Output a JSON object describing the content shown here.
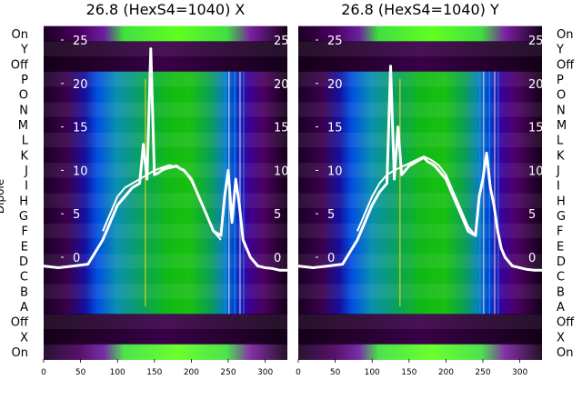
{
  "chart_data": [
    {
      "type": "heatmap",
      "title": "26.8 (HexS4=1040) X",
      "ylabel": "Dipole",
      "xlim": [
        0,
        330
      ],
      "x_ticks": [
        0,
        50,
        100,
        150,
        200,
        250,
        300
      ],
      "row_labels": [
        "On",
        "Y",
        "Off",
        "P",
        "O",
        "N",
        "M",
        "L",
        "K",
        "J",
        "I",
        "H",
        "G",
        "F",
        "E",
        "D",
        "C",
        "B",
        "A",
        "Off",
        "X",
        "On"
      ],
      "overlay_ticks": [
        25,
        20,
        15,
        10,
        5,
        0
      ],
      "series": [
        {
          "x": [
            0,
            20,
            40,
            60,
            80,
            90,
            100,
            110,
            120,
            130,
            135,
            140,
            145,
            150,
            155,
            160,
            165,
            170,
            175,
            180,
            185,
            190,
            200,
            210,
            220,
            230,
            240,
            245,
            250,
            255,
            260,
            265,
            270,
            275,
            280,
            290,
            300,
            310,
            320,
            330
          ],
          "y": [
            -1,
            -1.2,
            -1,
            -0.8,
            2,
            4,
            6,
            7,
            8,
            8.5,
            13,
            9,
            24,
            9.5,
            9.7,
            10,
            10.2,
            10.3,
            10.4,
            10.5,
            10.2,
            10,
            9,
            7,
            5,
            3,
            2.5,
            7,
            10,
            4,
            9,
            6,
            2,
            1,
            0,
            -1,
            -1.2,
            -1.3,
            -1.5,
            -1.5
          ]
        },
        {
          "x": [
            80,
            90,
            100,
            110,
            120,
            130,
            140,
            150,
            160,
            170,
            180,
            190,
            200,
            210,
            220,
            230,
            240
          ],
          "y": [
            3,
            5,
            7,
            8,
            8.5,
            9,
            9.5,
            10,
            10.3,
            10.6,
            10.4,
            10,
            8.8,
            7,
            5,
            3,
            2
          ]
        }
      ]
    },
    {
      "type": "heatmap",
      "title": "26.8 (HexS4=1040) Y",
      "xlim": [
        0,
        330
      ],
      "x_ticks": [
        0,
        50,
        100,
        150,
        200,
        250,
        300
      ],
      "row_labels": [
        "On",
        "Y",
        "Off",
        "P",
        "O",
        "N",
        "M",
        "L",
        "K",
        "J",
        "I",
        "H",
        "G",
        "F",
        "E",
        "D",
        "C",
        "B",
        "A",
        "Off",
        "X",
        "On"
      ],
      "overlay_ticks": [
        25,
        20,
        15,
        10,
        5,
        0
      ],
      "series": [
        {
          "x": [
            0,
            20,
            40,
            60,
            80,
            90,
            100,
            110,
            120,
            125,
            130,
            135,
            140,
            145,
            150,
            160,
            170,
            175,
            180,
            185,
            190,
            200,
            210,
            220,
            230,
            240,
            245,
            250,
            255,
            260,
            265,
            270,
            275,
            280,
            290,
            300,
            310,
            320,
            330
          ],
          "y": [
            -1,
            -1.2,
            -1,
            -0.8,
            2,
            4,
            6,
            7.5,
            8.5,
            22,
            9,
            15,
            9.5,
            10,
            10.5,
            11,
            11.5,
            11,
            10.8,
            10.5,
            10,
            9,
            7,
            5,
            3,
            2.5,
            7,
            9,
            12,
            8,
            6,
            3,
            1,
            0,
            -1,
            -1.2,
            -1.4,
            -1.5,
            -1.5
          ]
        },
        {
          "x": [
            80,
            90,
            100,
            110,
            120,
            130,
            140,
            150,
            160,
            170,
            180,
            190,
            200,
            210,
            220,
            230,
            240
          ],
          "y": [
            3,
            5,
            7,
            8.5,
            9.5,
            10,
            10.4,
            10.8,
            11.2,
            11.6,
            11.2,
            10.6,
            9.5,
            7.5,
            5.5,
            3.5,
            2.5
          ]
        }
      ]
    }
  ]
}
